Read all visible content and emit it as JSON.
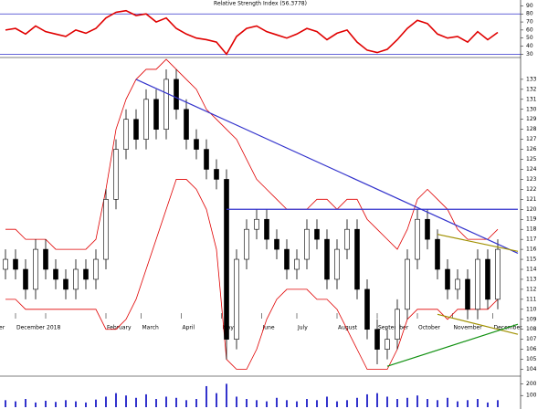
{
  "chart_data": {
    "type": "candlestick",
    "rsi": {
      "title": "Relative Strength Index (56.3778)",
      "ylim": [
        27,
        95
      ],
      "yticks": [
        90,
        80,
        70,
        60,
        50,
        40,
        30
      ],
      "levels": [
        80,
        30
      ],
      "level_color": "#3333cc",
      "color": "#e00000",
      "values": [
        60,
        62,
        55,
        65,
        58,
        55,
        52,
        60,
        56,
        62,
        75,
        82,
        84,
        78,
        80,
        70,
        75,
        62,
        55,
        50,
        48,
        45,
        30,
        52,
        62,
        65,
        58,
        54,
        50,
        55,
        62,
        58,
        48,
        56,
        60,
        45,
        35,
        32,
        36,
        48,
        62,
        72,
        68,
        55,
        50,
        52,
        45,
        58,
        48,
        57
      ]
    },
    "ylim": [
      103.5,
      135
    ],
    "yticks": [
      104,
      105,
      106,
      107,
      108,
      109,
      110,
      111,
      112,
      113,
      114,
      115,
      116,
      117,
      118,
      119,
      120,
      121,
      122,
      123,
      124,
      125,
      126,
      127,
      128,
      129,
      130,
      131,
      132,
      133
    ],
    "xticks": [
      {
        "value": -3,
        "label": "November"
      },
      {
        "value": 1,
        "label": "December"
      },
      {
        "value": 4,
        "label": "2018"
      },
      {
        "value": 10,
        "label": "February"
      },
      {
        "value": 13.5,
        "label": "March"
      },
      {
        "value": 17.5,
        "label": "April"
      },
      {
        "value": 21.5,
        "label": "May"
      },
      {
        "value": 25.5,
        "label": "June"
      },
      {
        "value": 29,
        "label": "July"
      },
      {
        "value": 33,
        "label": "August"
      },
      {
        "value": 37,
        "label": "September"
      },
      {
        "value": 41,
        "label": "October"
      },
      {
        "value": 44.5,
        "label": "November"
      },
      {
        "value": 48.5,
        "label": "December"
      }
    ],
    "open": [
      114,
      115,
      114,
      112,
      116,
      114,
      113,
      112,
      114,
      113,
      115,
      121,
      126,
      129,
      127,
      131,
      128,
      133,
      130,
      127,
      126,
      124,
      123,
      107,
      115,
      118,
      119,
      117,
      116,
      114,
      115,
      118,
      117,
      113,
      116,
      118,
      112,
      108,
      106,
      107,
      110,
      115,
      119,
      117,
      114,
      112,
      113,
      110,
      115,
      111
    ],
    "high": [
      116,
      116,
      115,
      117,
      117,
      115,
      114,
      115,
      115,
      116,
      122,
      127,
      130,
      130,
      132,
      132,
      134,
      134,
      131,
      128,
      127,
      125,
      124,
      116,
      119,
      120,
      120,
      118,
      117,
      116,
      119,
      119,
      118,
      117,
      119,
      119,
      113,
      109,
      108,
      111,
      116,
      120,
      120,
      118,
      115,
      114,
      114,
      116,
      116,
      117
    ],
    "low": [
      113,
      113,
      111,
      111,
      113,
      112,
      111,
      111,
      112,
      112,
      114,
      120,
      125,
      126,
      126,
      127,
      127,
      129,
      126,
      125,
      123,
      122,
      105,
      106,
      114,
      117,
      116,
      115,
      113,
      113,
      114,
      116,
      112,
      112,
      115,
      111,
      107,
      104.5,
      105,
      106,
      109,
      114,
      116,
      113,
      111,
      111,
      109,
      109,
      110,
      110
    ],
    "close": [
      115,
      114,
      112,
      116,
      114,
      113,
      112,
      114,
      113,
      115,
      121,
      126,
      129,
      127,
      131,
      128,
      133,
      130,
      127,
      126,
      124,
      123,
      107,
      115,
      118,
      119,
      117,
      116,
      114,
      115,
      118,
      117,
      113,
      116,
      118,
      112,
      108,
      106,
      107,
      110,
      115,
      119,
      117,
      114,
      112,
      113,
      110,
      115,
      111,
      116
    ],
    "bands": {
      "color": "#e00000",
      "upper": [
        118,
        118,
        117,
        117,
        117,
        116,
        116,
        116,
        116,
        117,
        122,
        128,
        131,
        133,
        134,
        134,
        135,
        134,
        133,
        132,
        130,
        129,
        128,
        127,
        125,
        123,
        122,
        121,
        120,
        120,
        120,
        121,
        121,
        120,
        121,
        121,
        119,
        118,
        117,
        116,
        118,
        121,
        122,
        121,
        120,
        118,
        117,
        117,
        117,
        118
      ],
      "lower": [
        111,
        111,
        110,
        110,
        110,
        110,
        110,
        110,
        110,
        110,
        108,
        108,
        109,
        111,
        114,
        117,
        120,
        123,
        123,
        122,
        120,
        116,
        105,
        104,
        104,
        106,
        109,
        111,
        112,
        112,
        112,
        111,
        111,
        110,
        108,
        106,
        104,
        104,
        104,
        106,
        109,
        110,
        110,
        110,
        109,
        110,
        110,
        110,
        110,
        111
      ]
    },
    "trendlines": [
      {
        "color": "#3333cc",
        "start": [
          13,
          133
        ],
        "end": [
          51,
          115.6
        ]
      },
      {
        "color": "#3333cc",
        "start": [
          22,
          120
        ],
        "end": [
          51,
          120
        ]
      },
      {
        "color": "#a09000",
        "start": [
          43,
          117.5
        ],
        "end": [
          51,
          115.8
        ]
      },
      {
        "color": "#a09000",
        "start": [
          43,
          109.5
        ],
        "end": [
          51,
          107.5
        ]
      },
      {
        "color": "#109010",
        "start": [
          38,
          104.3
        ],
        "end": [
          51,
          108.5
        ]
      }
    ],
    "volume": {
      "ylim": [
        0,
        250
      ],
      "yticks": [
        100,
        200
      ],
      "color": "#3333cc",
      "values": [
        60,
        50,
        70,
        40,
        55,
        45,
        60,
        50,
        40,
        65,
        90,
        120,
        100,
        80,
        110,
        70,
        90,
        80,
        60,
        70,
        180,
        120,
        200,
        90,
        70,
        60,
        50,
        80,
        60,
        50,
        70,
        60,
        90,
        50,
        60,
        80,
        110,
        120,
        90,
        70,
        80,
        100,
        70,
        60,
        80,
        50,
        60,
        70,
        40,
        60
      ]
    }
  }
}
